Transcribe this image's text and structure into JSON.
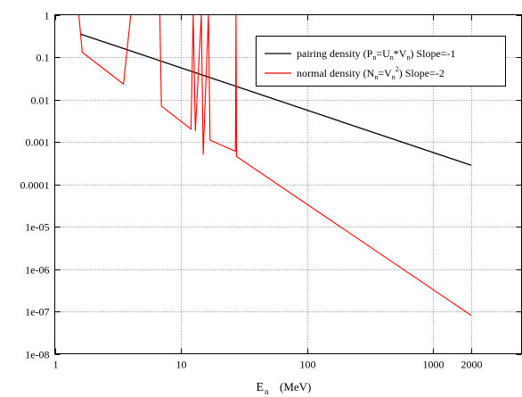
{
  "chart_data": {
    "type": "line",
    "title": "",
    "xlabel": {
      "main": "E",
      "sub": "n",
      "unit": "(MeV)"
    },
    "ylabel": "",
    "x_scale": "log",
    "y_scale": "log",
    "xlim": [
      1,
      5000
    ],
    "ylim": [
      1e-08,
      1
    ],
    "grid": true,
    "legend_position": "top-right",
    "x_ticks": [
      {
        "value": 1,
        "label": "1"
      },
      {
        "value": 10,
        "label": "10"
      },
      {
        "value": 100,
        "label": "100"
      },
      {
        "value": 1000,
        "label": "1000"
      },
      {
        "value": 2000,
        "label": "2000"
      }
    ],
    "y_ticks": [
      {
        "value": 1,
        "label": "1"
      },
      {
        "value": 0.1,
        "label": "0.1"
      },
      {
        "value": 0.01,
        "label": "0.01"
      },
      {
        "value": 0.001,
        "label": "0.001"
      },
      {
        "value": 0.0001,
        "label": "0.0001"
      },
      {
        "value": 1e-05,
        "label": "1e-05"
      },
      {
        "value": 1e-06,
        "label": "1e-06"
      },
      {
        "value": 1e-07,
        "label": "1e-07"
      },
      {
        "value": 1e-08,
        "label": "1e-08"
      }
    ],
    "series": [
      {
        "name": "pairing density (Pn=Un*Vn) Slope=-1",
        "legend_parts": [
          "pairing density (P",
          "n",
          "=U",
          "n",
          "*V",
          "n",
          ") Slope=-1"
        ],
        "color": "#000000",
        "x": [
          1.6,
          2000
        ],
        "y": [
          0.35,
          0.00028
        ]
      },
      {
        "name": "normal density (Nn=Vn^2) Slope=-2",
        "legend_parts": [
          "normal density (N",
          "n",
          "=V",
          "n",
          "2",
          ") Slope=-2"
        ],
        "color": "#ff0000",
        "x": [
          1.55,
          1.65,
          3.5,
          4.0,
          6.6,
          6.8,
          7.0,
          12.0,
          12.5,
          13.0,
          14.5,
          15.0,
          16.5,
          17.0,
          27.0,
          27.3,
          27.6,
          2000
        ],
        "y": [
          1,
          0.13,
          0.023,
          1,
          1,
          1,
          0.007,
          0.002,
          1,
          0.0018,
          1,
          0.0005,
          1,
          0.0011,
          0.0006,
          1,
          0.00045,
          8e-08
        ]
      }
    ]
  }
}
